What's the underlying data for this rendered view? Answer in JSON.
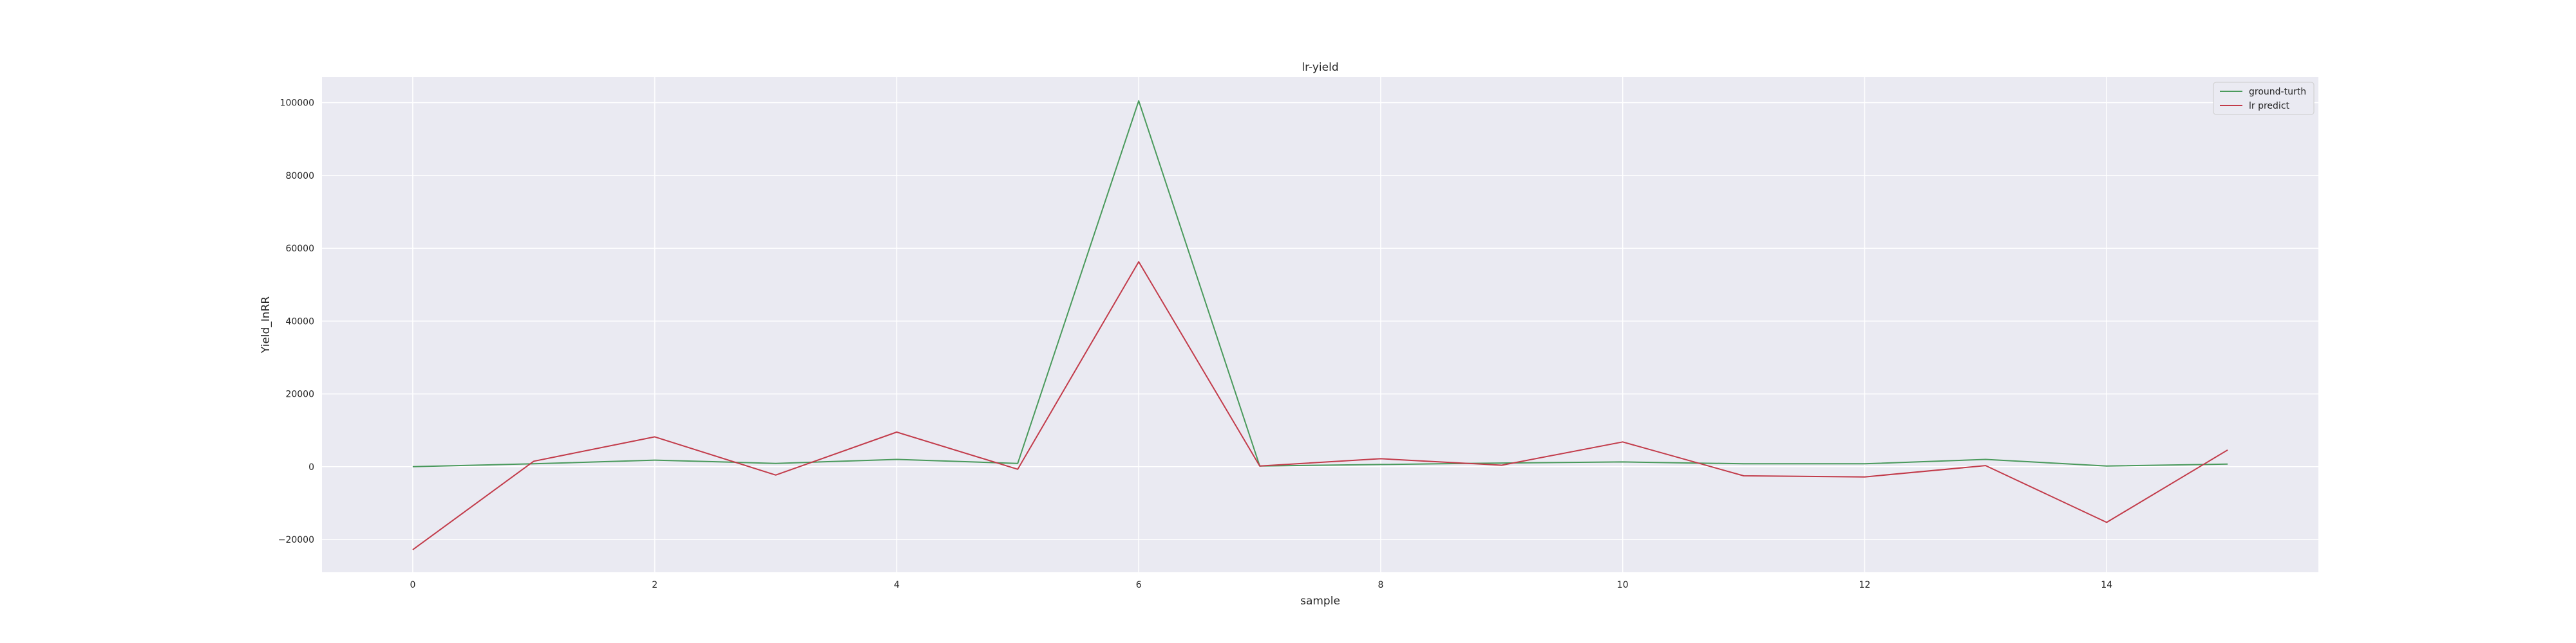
{
  "chart_data": {
    "type": "line",
    "title": "lr-yield",
    "xlabel": "sample",
    "ylabel": "Yield_InRR",
    "xlim": [
      -0.75,
      15.75
    ],
    "ylim": [
      -29000,
      107000
    ],
    "xticks": [
      0,
      2,
      4,
      6,
      8,
      10,
      12,
      14
    ],
    "xtick_labels": [
      "0",
      "2",
      "4",
      "6",
      "8",
      "10",
      "12",
      "14"
    ],
    "yticks": [
      -20000,
      0,
      20000,
      40000,
      60000,
      80000,
      100000
    ],
    "ytick_labels": [
      "−20000",
      "0",
      "20000",
      "40000",
      "60000",
      "80000",
      "100000"
    ],
    "grid": true,
    "legend_position": "top-right",
    "x": [
      0,
      1,
      2,
      3,
      4,
      5,
      6,
      7,
      8,
      9,
      10,
      11,
      12,
      13,
      14,
      15
    ],
    "series": [
      {
        "name": "ground-turth",
        "color": "#4a9a5c",
        "values": [
          0,
          800,
          1800,
          900,
          2000,
          900,
          100500,
          200,
          600,
          1000,
          1300,
          800,
          800,
          2000,
          200,
          700
        ]
      },
      {
        "name": "lr predict",
        "color": "#c23b4a",
        "values": [
          -22800,
          1500,
          8200,
          -2300,
          9500,
          -700,
          56300,
          200,
          2200,
          400,
          6800,
          -2500,
          -2800,
          300,
          -15300,
          4600
        ]
      }
    ]
  },
  "colors": {
    "plot_background": "#eaeaf2",
    "grid": "#ffffff",
    "page_background": "#ffffff"
  }
}
